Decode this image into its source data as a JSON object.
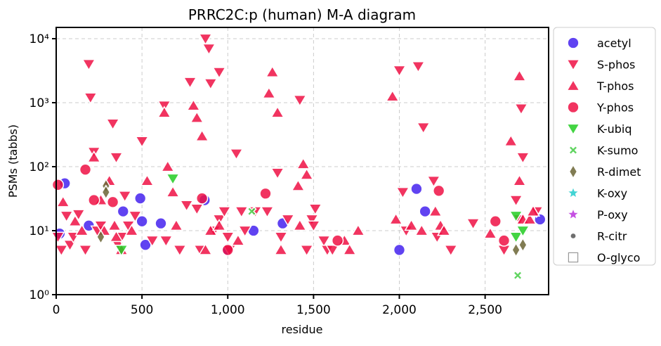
{
  "chart_data": {
    "type": "scatter",
    "title": "PRRC2C:p (human) M-A diagram",
    "xlabel": "residue",
    "ylabel": "PSMs (tabbs)",
    "xlim": [
      0,
      2870
    ],
    "ylim": [
      1,
      15000
    ],
    "yscale": "log",
    "xticks": [
      0,
      500,
      1000,
      1500,
      2000,
      2500
    ],
    "xtick_labels": [
      "0",
      "500",
      "1,000",
      "1,500",
      "2,000",
      "2,500"
    ],
    "yticks": [
      1,
      10,
      100,
      1000,
      10000
    ],
    "ytick_labels": [
      "10⁰",
      "10¹",
      "10²",
      "10³",
      "10⁴"
    ],
    "grid": true,
    "legend_position": "right",
    "series": [
      {
        "name": "acetyl",
        "marker": "circle",
        "color": "#4422ee",
        "points": [
          [
            20,
            9
          ],
          [
            50,
            55
          ],
          [
            190,
            12
          ],
          [
            390,
            20
          ],
          [
            490,
            32
          ],
          [
            500,
            14
          ],
          [
            520,
            6
          ],
          [
            610,
            13
          ],
          [
            865,
            30
          ],
          [
            1000,
            5
          ],
          [
            1150,
            10
          ],
          [
            1320,
            13
          ],
          [
            2000,
            5
          ],
          [
            2100,
            45
          ],
          [
            2150,
            20
          ],
          [
            2820,
            15
          ]
        ]
      },
      {
        "name": "S-phos",
        "marker": "triangle-down",
        "color": "#ee1144",
        "points": [
          [
            10,
            8
          ],
          [
            30,
            5
          ],
          [
            60,
            17
          ],
          [
            80,
            6
          ],
          [
            100,
            8
          ],
          [
            130,
            18
          ],
          [
            170,
            5
          ],
          [
            190,
            4000
          ],
          [
            200,
            1200
          ],
          [
            220,
            170
          ],
          [
            240,
            10
          ],
          [
            260,
            12
          ],
          [
            330,
            470
          ],
          [
            350,
            140
          ],
          [
            360,
            6
          ],
          [
            380,
            8
          ],
          [
            400,
            35
          ],
          [
            420,
            12
          ],
          [
            460,
            17
          ],
          [
            500,
            250
          ],
          [
            560,
            7
          ],
          [
            630,
            900
          ],
          [
            640,
            7
          ],
          [
            720,
            5
          ],
          [
            760,
            25
          ],
          [
            780,
            2100
          ],
          [
            820,
            22
          ],
          [
            840,
            5
          ],
          [
            870,
            10000
          ],
          [
            890,
            7000
          ],
          [
            900,
            2000
          ],
          [
            920,
            10
          ],
          [
            950,
            3000
          ],
          [
            950,
            15
          ],
          [
            980,
            20
          ],
          [
            1000,
            8
          ],
          [
            1010,
            5
          ],
          [
            1050,
            160
          ],
          [
            1080,
            20
          ],
          [
            1100,
            10
          ],
          [
            1160,
            20
          ],
          [
            1230,
            20
          ],
          [
            1290,
            80
          ],
          [
            1310,
            8
          ],
          [
            1350,
            15
          ],
          [
            1420,
            1100
          ],
          [
            1460,
            5
          ],
          [
            1490,
            15
          ],
          [
            1500,
            12
          ],
          [
            1510,
            22
          ],
          [
            1560,
            7
          ],
          [
            1580,
            5
          ],
          [
            1610,
            5
          ],
          [
            2000,
            3200
          ],
          [
            2020,
            40
          ],
          [
            2040,
            10
          ],
          [
            2110,
            3700
          ],
          [
            2140,
            410
          ],
          [
            2200,
            60
          ],
          [
            2220,
            8
          ],
          [
            2300,
            5
          ],
          [
            2430,
            13
          ],
          [
            2610,
            5
          ],
          [
            2680,
            30
          ],
          [
            2710,
            810
          ],
          [
            2700,
            15
          ],
          [
            2720,
            140
          ],
          [
            2800,
            20
          ]
        ]
      },
      {
        "name": "T-phos",
        "marker": "triangle-up",
        "color": "#ee1144",
        "points": [
          [
            40,
            28
          ],
          [
            110,
            14
          ],
          [
            150,
            10
          ],
          [
            220,
            140
          ],
          [
            260,
            30
          ],
          [
            280,
            10
          ],
          [
            310,
            60
          ],
          [
            340,
            12
          ],
          [
            350,
            8
          ],
          [
            380,
            5
          ],
          [
            440,
            10
          ],
          [
            530,
            60
          ],
          [
            630,
            700
          ],
          [
            650,
            100
          ],
          [
            680,
            40
          ],
          [
            700,
            12
          ],
          [
            800,
            900
          ],
          [
            820,
            580
          ],
          [
            850,
            300
          ],
          [
            870,
            5
          ],
          [
            900,
            10
          ],
          [
            950,
            12
          ],
          [
            1060,
            7
          ],
          [
            1240,
            1400
          ],
          [
            1260,
            3000
          ],
          [
            1290,
            700
          ],
          [
            1310,
            5
          ],
          [
            1410,
            50
          ],
          [
            1420,
            12
          ],
          [
            1440,
            110
          ],
          [
            1460,
            75
          ],
          [
            1680,
            7
          ],
          [
            1710,
            5
          ],
          [
            1760,
            10
          ],
          [
            1960,
            1250
          ],
          [
            1980,
            15
          ],
          [
            2070,
            12
          ],
          [
            2130,
            10
          ],
          [
            2210,
            20
          ],
          [
            2240,
            12
          ],
          [
            2260,
            10
          ],
          [
            2530,
            9
          ],
          [
            2650,
            250
          ],
          [
            2700,
            2600
          ],
          [
            2700,
            60
          ],
          [
            2720,
            15
          ],
          [
            2760,
            15
          ],
          [
            2780,
            20
          ]
        ]
      },
      {
        "name": "Y-phos",
        "marker": "circle",
        "color": "#ee1144",
        "points": [
          [
            10,
            52
          ],
          [
            170,
            90
          ],
          [
            220,
            30
          ],
          [
            330,
            28
          ],
          [
            850,
            32
          ],
          [
            1000,
            5
          ],
          [
            1220,
            38
          ],
          [
            1640,
            7
          ],
          [
            2230,
            42
          ],
          [
            2560,
            14
          ],
          [
            2610,
            7
          ]
        ]
      },
      {
        "name": "K-ubiq",
        "marker": "triangle-down",
        "color": "#22cc22",
        "points": [
          [
            380,
            5
          ],
          [
            680,
            65
          ],
          [
            2680,
            17
          ],
          [
            2680,
            8
          ],
          [
            2720,
            10
          ]
        ]
      },
      {
        "name": "K-sumo",
        "marker": "x",
        "color": "#44cc44",
        "points": [
          [
            1140,
            20
          ],
          [
            2690,
            2
          ]
        ]
      },
      {
        "name": "R-dimet",
        "marker": "diamond",
        "color": "#6b6535",
        "points": [
          [
            260,
            8
          ],
          [
            290,
            50
          ],
          [
            290,
            40
          ],
          [
            2680,
            5
          ],
          [
            2720,
            6
          ]
        ]
      },
      {
        "name": "K-oxy",
        "marker": "star",
        "color": "#22cccc",
        "points": []
      },
      {
        "name": "P-oxy",
        "marker": "star",
        "color": "#bb33dd",
        "points": []
      },
      {
        "name": "R-citr",
        "marker": "small-circle",
        "color": "#555555",
        "points": []
      },
      {
        "name": "O-glyco",
        "marker": "square-open",
        "color": "#999999",
        "points": []
      }
    ]
  }
}
